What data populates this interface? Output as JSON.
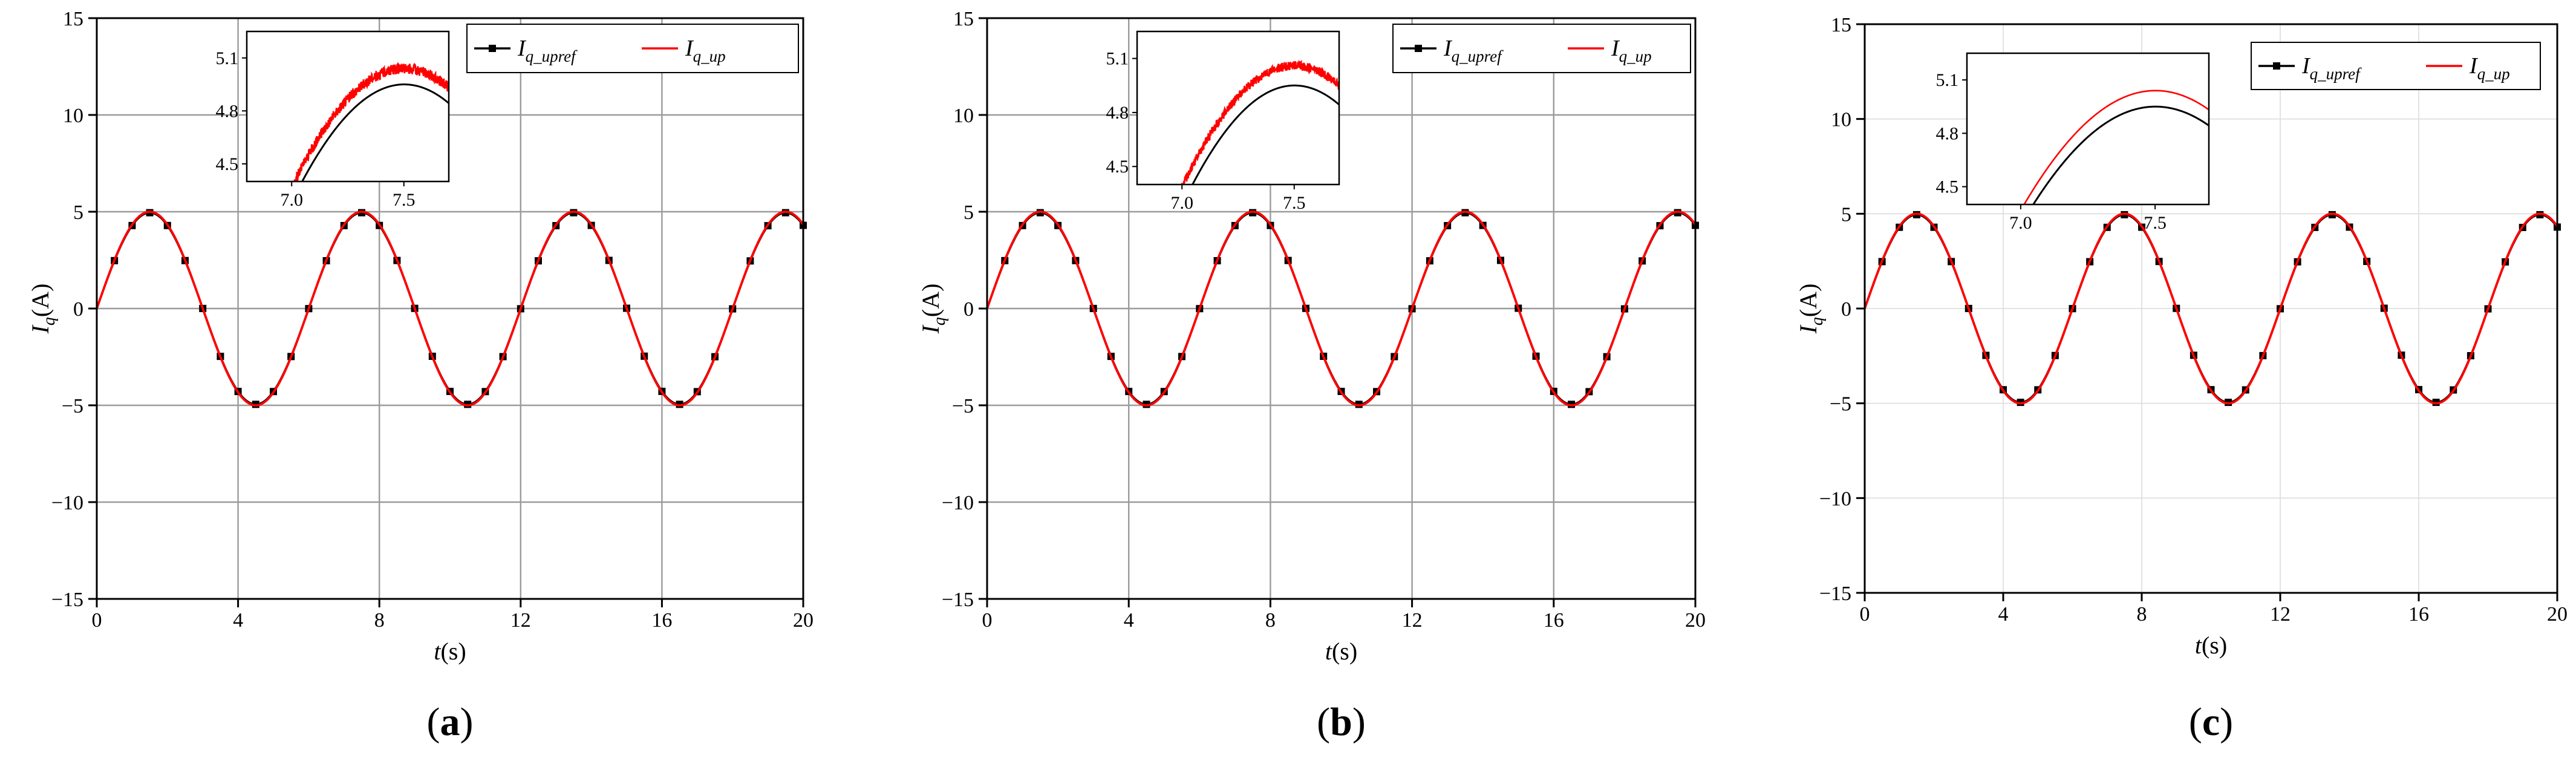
{
  "chart_data": [
    {
      "panel_label": "a",
      "type": "line",
      "xlabel": {
        "italic": "t",
        "rest": "(s)"
      },
      "ylabel": {
        "italic": "I",
        "sub": "q",
        "rest": "(A)"
      },
      "xlim": [
        0,
        20
      ],
      "ylim": [
        -15,
        15
      ],
      "xticks": [
        0,
        4,
        8,
        12,
        16,
        20
      ],
      "yticks": [
        -15,
        -10,
        -5,
        0,
        5,
        10,
        15
      ],
      "grid": "major-dark",
      "legend": {
        "placement": "top-right",
        "entries": [
          {
            "main": "I",
            "sub": "q_upref",
            "color": "#000000",
            "marker": "square"
          },
          {
            "main": "I",
            "sub": "q_up",
            "color": "#ff0000",
            "marker": "none"
          }
        ]
      },
      "series": [
        {
          "label_ref": "I_q_upref",
          "color": "#000000",
          "marker": "square",
          "function": "4.95*sin(1.047*t)",
          "x_range": [
            0,
            20
          ],
          "marker_step": 0.5,
          "inset_offset": 0
        },
        {
          "label_ref": "I_q_up",
          "color": "#ff0000",
          "marker": "none",
          "function": "5.0*sin(1.047*t)+noise",
          "x_range": [
            0,
            20
          ],
          "inset_offset": 0.04,
          "noise_amplitude": 0.03
        }
      ],
      "inset": {
        "xlim": [
          6.8,
          7.7
        ],
        "ylim": [
          4.4,
          5.25
        ],
        "xticks": [
          7.0,
          7.5
        ],
        "xticklabels": [
          "7.0",
          "7.5"
        ],
        "yticks": [
          4.5,
          4.8,
          5.1
        ],
        "yticklabels": [
          "4.5",
          "4.8",
          "5.1"
        ]
      }
    },
    {
      "panel_label": "b",
      "type": "line",
      "xlabel": {
        "italic": "t",
        "rest": "(s)"
      },
      "ylabel": {
        "italic": "I",
        "sub": "q",
        "rest": "(A)"
      },
      "xlim": [
        0,
        20
      ],
      "ylim": [
        -15,
        15
      ],
      "xticks": [
        0,
        4,
        8,
        12,
        16,
        20
      ],
      "yticks": [
        -15,
        -10,
        -5,
        0,
        5,
        10,
        15
      ],
      "grid": "major-dark",
      "legend": {
        "placement": "top-right",
        "entries": [
          {
            "main": "I",
            "sub": "q_upref",
            "color": "#000000",
            "marker": "square"
          },
          {
            "main": "I",
            "sub": "q_up",
            "color": "#ff0000",
            "marker": "none"
          }
        ]
      },
      "series": [
        {
          "label_ref": "I_q_upref",
          "color": "#000000",
          "marker": "square",
          "function": "4.95*sin(1.047*t)",
          "x_range": [
            0,
            20
          ],
          "marker_step": 0.5,
          "inset_offset": 0
        },
        {
          "label_ref": "I_q_up",
          "color": "#ff0000",
          "marker": "none",
          "function": "5.0*sin(1.047*t)+noise",
          "x_range": [
            0,
            20
          ],
          "inset_offset": 0.06,
          "noise_amplitude": 0.025
        }
      ],
      "inset": {
        "xlim": [
          6.8,
          7.7
        ],
        "ylim": [
          4.4,
          5.25
        ],
        "xticks": [
          7.0,
          7.5
        ],
        "xticklabels": [
          "7.0",
          "7.5"
        ],
        "yticks": [
          4.5,
          4.8,
          5.1
        ],
        "yticklabels": [
          "4.5",
          "4.8",
          "5.1"
        ]
      }
    },
    {
      "panel_label": "c",
      "type": "line",
      "xlabel": {
        "italic": "t",
        "rest": "(s)"
      },
      "ylabel": {
        "italic": "I",
        "sub": "q",
        "rest": "(A)"
      },
      "xlim": [
        0,
        20
      ],
      "ylim": [
        -15,
        15
      ],
      "xticks": [
        0,
        4,
        8,
        12,
        16,
        20
      ],
      "yticks": [
        -15,
        -10,
        -5,
        0,
        5,
        10,
        15
      ],
      "grid": "major-light",
      "legend": {
        "placement": "top-right",
        "entries": [
          {
            "main": "I",
            "sub": "q_upref",
            "color": "#000000",
            "marker": "square"
          },
          {
            "main": "I",
            "sub": "q_up",
            "color": "#ff0000",
            "marker": "none"
          }
        ]
      },
      "series": [
        {
          "label_ref": "I_q_upref",
          "color": "#000000",
          "marker": "square",
          "function": "4.95*sin(1.047*t)",
          "x_range": [
            0,
            20
          ],
          "marker_step": 0.5,
          "inset_offset": 0
        },
        {
          "label_ref": "I_q_up",
          "color": "#ff0000",
          "marker": "none",
          "function": "5.0*sin(1.047*t)",
          "x_range": [
            0,
            20
          ],
          "inset_offset": 0.04,
          "noise_amplitude": 0
        }
      ],
      "inset": {
        "xlim": [
          6.8,
          7.7
        ],
        "ylim": [
          4.4,
          5.25
        ],
        "xticks": [
          7.0,
          7.5
        ],
        "xticklabels": [
          "7.0",
          "7.5"
        ],
        "yticks": [
          4.5,
          4.8,
          5.1
        ],
        "yticklabels": [
          "4.5",
          "4.8",
          "5.1"
        ]
      }
    }
  ]
}
